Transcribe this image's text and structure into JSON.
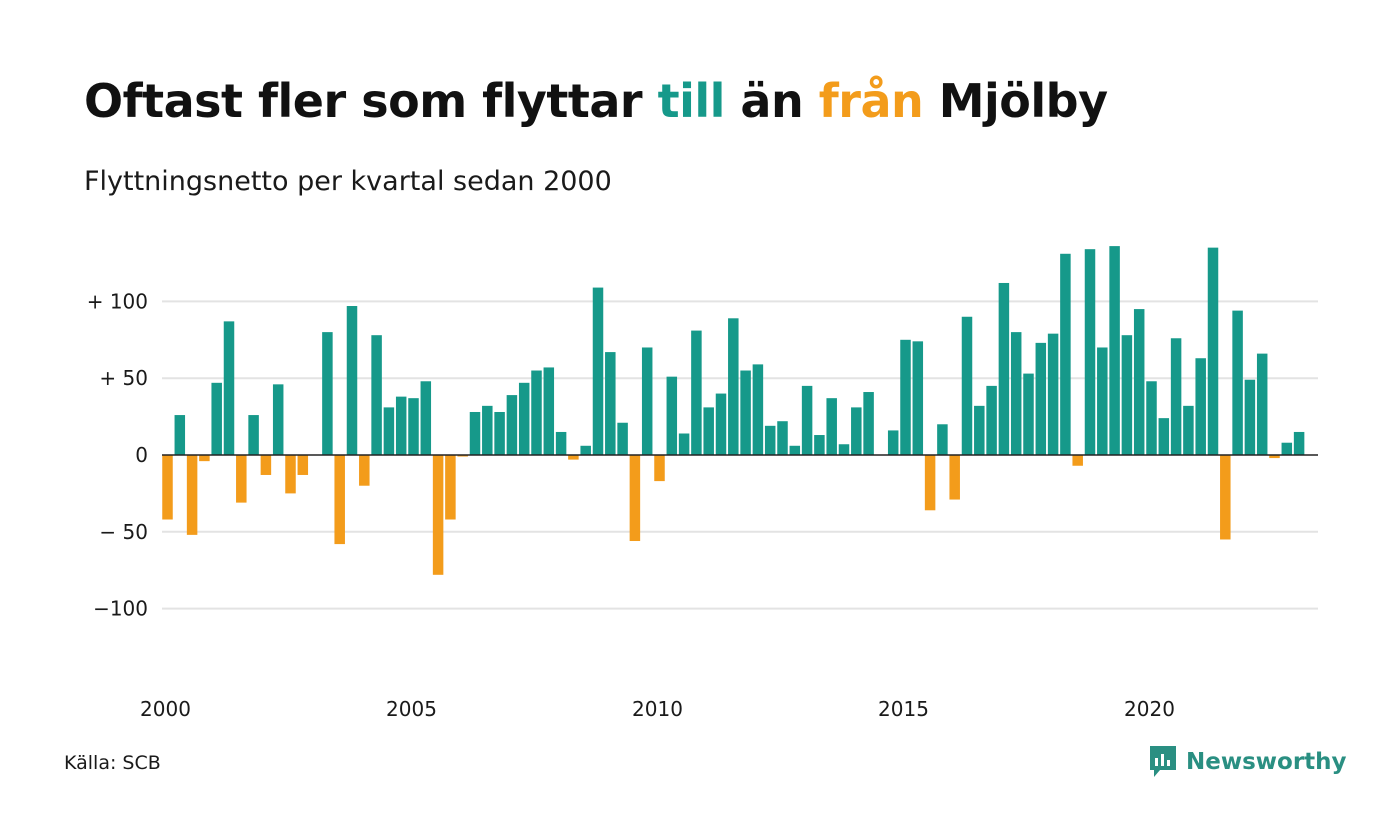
{
  "title": {
    "part1": "Oftast fler som flyttar ",
    "to_word": "till",
    "part2": " än ",
    "from_word": "från",
    "part3": " Mjölby"
  },
  "subtitle": "Flyttningsnetto per kvartal sedan 2000",
  "source": "Källa: SCB",
  "brand": "Newsworthy",
  "colors": {
    "positive": "#16998a",
    "negative": "#f39c1b",
    "grid": "#e3e3e3",
    "zero_line": "#222222"
  },
  "chart_data": {
    "type": "bar",
    "title": "Oftast fler som flyttar till än från Mjölby",
    "subtitle": "Flyttningsnetto per kvartal sedan 2000",
    "xlabel": "",
    "ylabel": "",
    "ylim": [
      -130,
      140
    ],
    "grid": true,
    "yticks": [
      {
        "value": 100,
        "label": "+ 100"
      },
      {
        "value": 50,
        "label": "+  50"
      },
      {
        "value": 0,
        "label": "0"
      },
      {
        "value": -50,
        "label": "− 50"
      },
      {
        "value": -100,
        "label": "−100"
      }
    ],
    "xticks": [
      {
        "value": 2000,
        "label": "2000"
      },
      {
        "value": 2005,
        "label": "2005"
      },
      {
        "value": 2010,
        "label": "2010"
      },
      {
        "value": 2015,
        "label": "2015"
      },
      {
        "value": 2020,
        "label": "2020"
      }
    ],
    "start_year": 2000,
    "start_quarter": 1,
    "values": [
      -42,
      26,
      -52,
      -4,
      47,
      87,
      -31,
      26,
      -13,
      46,
      -25,
      -13,
      0,
      80,
      -58,
      97,
      -20,
      78,
      31,
      38,
      37,
      48,
      -78,
      -42,
      -1,
      28,
      32,
      28,
      39,
      47,
      55,
      57,
      15,
      -3,
      6,
      109,
      67,
      21,
      -56,
      70,
      -17,
      51,
      14,
      81,
      31,
      40,
      89,
      55,
      59,
      19,
      22,
      6,
      45,
      13,
      37,
      7,
      31,
      41,
      0,
      16,
      75,
      74,
      -36,
      20,
      -29,
      90,
      32,
      45,
      112,
      80,
      53,
      73,
      79,
      131,
      -7,
      134,
      70,
      136,
      78,
      95,
      48,
      24,
      76,
      32,
      63,
      135,
      -55,
      94,
      49,
      66,
      -2,
      8,
      15
    ]
  }
}
